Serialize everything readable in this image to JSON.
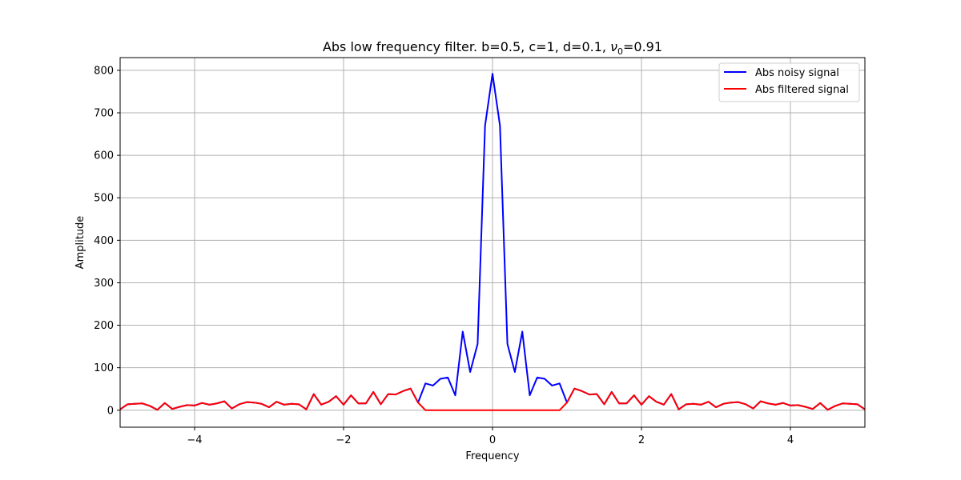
{
  "chart_data": {
    "type": "line",
    "title": "Abs low frequency filter. b=0.5, c=1, d=0.1, ν0=0.91",
    "title_parts": {
      "prefix": "Abs low frequency filter. b=0.5, c=1, d=0.1, ",
      "nu": "ν",
      "nu_sub": "0",
      "suffix": "=0.91"
    },
    "xlabel": "Frequency",
    "ylabel": "Amplitude",
    "xlim": [
      -5,
      5
    ],
    "ylim": [
      -40,
      830
    ],
    "xticks": [
      -4,
      -2,
      0,
      2,
      4
    ],
    "xtick_labels": [
      "−4",
      "−2",
      "0",
      "2",
      "4"
    ],
    "yticks": [
      0,
      100,
      200,
      300,
      400,
      500,
      600,
      700,
      800
    ],
    "ytick_labels": [
      "0",
      "100",
      "200",
      "300",
      "400",
      "500",
      "600",
      "700",
      "800"
    ],
    "grid": true,
    "legend_position": "top-right",
    "series": [
      {
        "name": "Abs noisy signal",
        "color": "#0000ff",
        "x": [
          -5.0,
          -4.9,
          -4.8,
          -4.7,
          -4.6,
          -4.5,
          -4.4,
          -4.3,
          -4.2,
          -4.1,
          -4.0,
          -3.9,
          -3.8,
          -3.7,
          -3.6,
          -3.5,
          -3.4,
          -3.3,
          -3.2,
          -3.1,
          -3.0,
          -2.9,
          -2.8,
          -2.7,
          -2.6,
          -2.5,
          -2.4,
          -2.3,
          -2.2,
          -2.1,
          -2.0,
          -1.9,
          -1.8,
          -1.7,
          -1.6,
          -1.5,
          -1.4,
          -1.3,
          -1.2,
          -1.1,
          -1.0,
          -0.9,
          -0.8,
          -0.7,
          -0.6,
          -0.5,
          -0.4,
          -0.3,
          -0.2,
          -0.1,
          0.0,
          0.1,
          0.2,
          0.3,
          0.4,
          0.5,
          0.6,
          0.7,
          0.8,
          0.9,
          1.0,
          1.1,
          1.2,
          1.3,
          1.4,
          1.5,
          1.6,
          1.7,
          1.8,
          1.9,
          2.0,
          2.1,
          2.2,
          2.3,
          2.4,
          2.5,
          2.6,
          2.7,
          2.8,
          2.9,
          3.0,
          3.1,
          3.2,
          3.3,
          3.4,
          3.5,
          3.6,
          3.7,
          3.8,
          3.9,
          4.0,
          4.1,
          4.2,
          4.3,
          4.4,
          4.5,
          4.6,
          4.7,
          4.8,
          4.9,
          5.0
        ],
        "values": [
          2,
          14,
          15,
          16,
          10,
          1,
          17,
          3,
          8,
          12,
          11,
          17,
          13,
          16,
          21,
          4,
          14,
          19,
          18,
          15,
          7,
          20,
          13,
          15,
          14,
          2,
          38,
          13,
          20,
          33,
          13,
          35,
          16,
          16,
          43,
          14,
          38,
          37,
          45,
          51,
          18,
          63,
          58,
          74,
          77,
          35,
          185,
          90,
          156,
          670,
          792,
          670,
          156,
          90,
          185,
          35,
          77,
          74,
          58,
          63,
          18,
          51,
          45,
          37,
          38,
          14,
          43,
          16,
          16,
          35,
          13,
          33,
          20,
          13,
          38,
          2,
          14,
          15,
          13,
          20,
          7,
          15,
          18,
          19,
          14,
          4,
          21,
          16,
          13,
          17,
          11,
          12,
          8,
          3,
          17,
          1,
          10,
          16,
          15,
          14,
          2
        ]
      },
      {
        "name": "Abs filtered signal",
        "color": "#ff0000",
        "x": [
          -5.0,
          -4.9,
          -4.8,
          -4.7,
          -4.6,
          -4.5,
          -4.4,
          -4.3,
          -4.2,
          -4.1,
          -4.0,
          -3.9,
          -3.8,
          -3.7,
          -3.6,
          -3.5,
          -3.4,
          -3.3,
          -3.2,
          -3.1,
          -3.0,
          -2.9,
          -2.8,
          -2.7,
          -2.6,
          -2.5,
          -2.4,
          -2.3,
          -2.2,
          -2.1,
          -2.0,
          -1.9,
          -1.8,
          -1.7,
          -1.6,
          -1.5,
          -1.4,
          -1.3,
          -1.2,
          -1.1,
          -1.0,
          -0.9,
          -0.8,
          -0.7,
          -0.6,
          -0.5,
          -0.4,
          -0.3,
          -0.2,
          -0.1,
          0.0,
          0.1,
          0.2,
          0.3,
          0.4,
          0.5,
          0.6,
          0.7,
          0.8,
          0.9,
          1.0,
          1.1,
          1.2,
          1.3,
          1.4,
          1.5,
          1.6,
          1.7,
          1.8,
          1.9,
          2.0,
          2.1,
          2.2,
          2.3,
          2.4,
          2.5,
          2.6,
          2.7,
          2.8,
          2.9,
          3.0,
          3.1,
          3.2,
          3.3,
          3.4,
          3.5,
          3.6,
          3.7,
          3.8,
          3.9,
          4.0,
          4.1,
          4.2,
          4.3,
          4.4,
          4.5,
          4.6,
          4.7,
          4.8,
          4.9,
          5.0
        ],
        "values": [
          2,
          14,
          15,
          16,
          10,
          1,
          17,
          3,
          8,
          12,
          11,
          17,
          13,
          16,
          21,
          4,
          14,
          19,
          18,
          15,
          7,
          20,
          13,
          15,
          14,
          2,
          38,
          13,
          20,
          33,
          13,
          35,
          16,
          16,
          43,
          14,
          38,
          37,
          45,
          51,
          18,
          0,
          0,
          0,
          0,
          0,
          0,
          0,
          0,
          0,
          0,
          0,
          0,
          0,
          0,
          0,
          0,
          0,
          0,
          0,
          18,
          51,
          45,
          37,
          38,
          14,
          43,
          16,
          16,
          35,
          13,
          33,
          20,
          13,
          38,
          2,
          14,
          15,
          13,
          20,
          7,
          15,
          18,
          19,
          14,
          4,
          21,
          16,
          13,
          17,
          11,
          12,
          8,
          3,
          17,
          1,
          10,
          16,
          15,
          14,
          2
        ]
      }
    ]
  }
}
